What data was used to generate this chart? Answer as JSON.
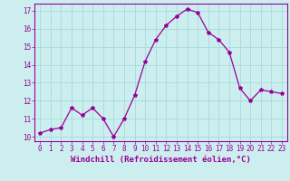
{
  "x": [
    0,
    1,
    2,
    3,
    4,
    5,
    6,
    7,
    8,
    9,
    10,
    11,
    12,
    13,
    14,
    15,
    16,
    17,
    18,
    19,
    20,
    21,
    22,
    23
  ],
  "y": [
    10.2,
    10.4,
    10.5,
    11.6,
    11.2,
    11.6,
    11.0,
    10.0,
    11.0,
    12.3,
    14.2,
    15.4,
    16.2,
    16.7,
    17.1,
    16.9,
    15.8,
    15.4,
    14.7,
    12.7,
    12.0,
    12.6,
    12.5,
    12.4
  ],
  "line_color": "#990099",
  "marker": "*",
  "marker_size": 3,
  "bg_color": "#cceeee",
  "grid_color": "#aadddd",
  "xlabel": "Windchill (Refroidissement éolien,°C)",
  "xlim": [
    -0.5,
    23.5
  ],
  "ylim": [
    9.75,
    17.4
  ],
  "yticks": [
    10,
    11,
    12,
    13,
    14,
    15,
    16,
    17
  ],
  "xticks": [
    0,
    1,
    2,
    3,
    4,
    5,
    6,
    7,
    8,
    9,
    10,
    11,
    12,
    13,
    14,
    15,
    16,
    17,
    18,
    19,
    20,
    21,
    22,
    23
  ],
  "axis_color": "#990099",
  "tick_label_color": "#990099",
  "xlabel_color": "#990099",
  "tick_fontsize": 5.5,
  "xlabel_fontsize": 6.5
}
